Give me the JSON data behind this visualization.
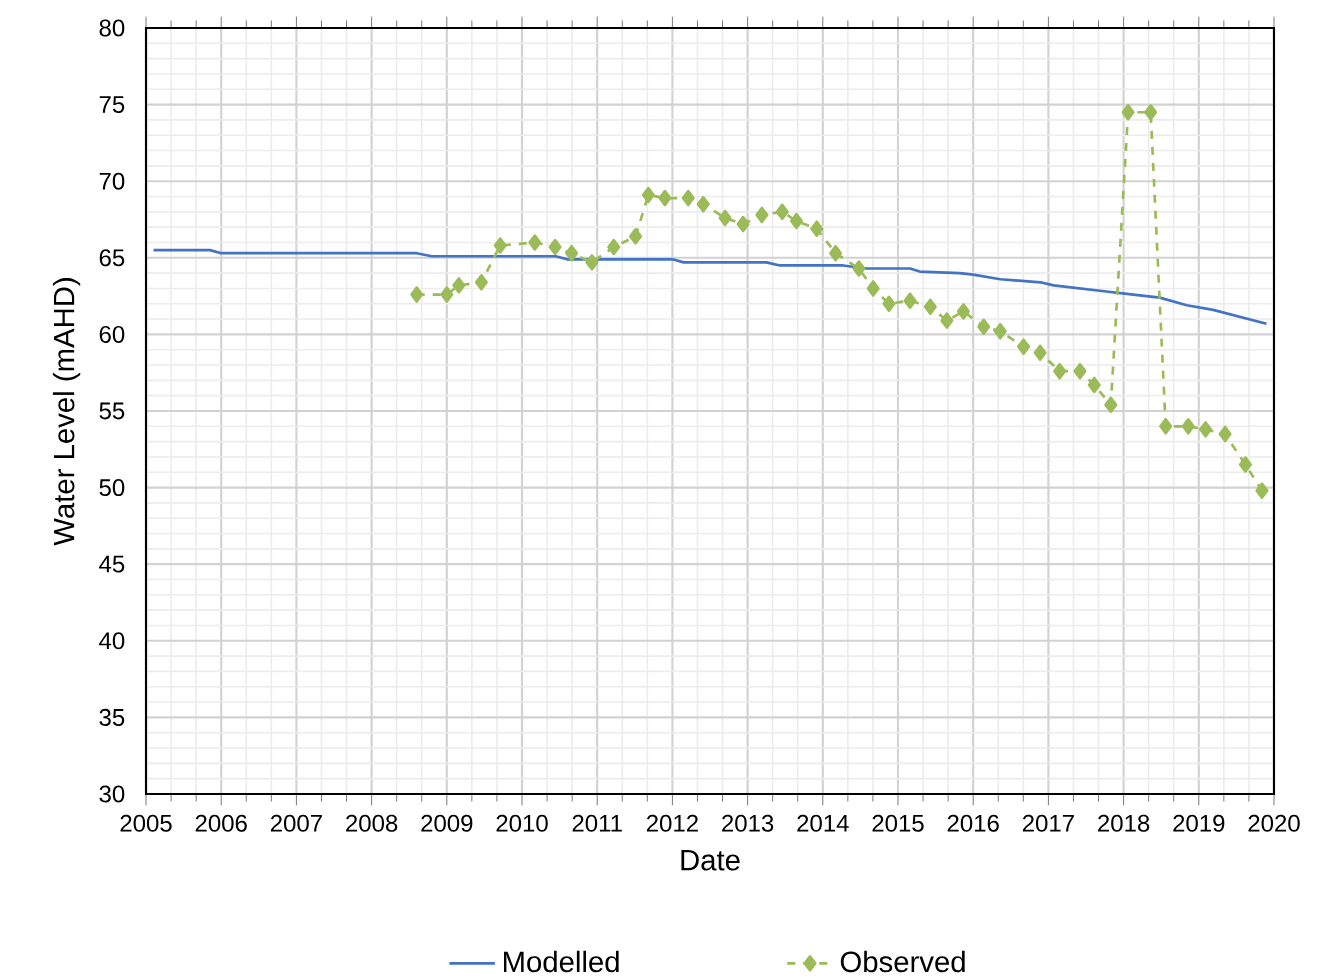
{
  "chart_data": {
    "type": "line",
    "xlabel": "Date",
    "ylabel": "Water Level (mAHD)",
    "xlim": [
      2005,
      2020
    ],
    "xticks": [
      2005,
      2006,
      2007,
      2008,
      2009,
      2010,
      2011,
      2012,
      2013,
      2014,
      2015,
      2016,
      2017,
      2018,
      2019,
      2020
    ],
    "ylim": [
      30,
      80
    ],
    "yticks": [
      30,
      35,
      40,
      45,
      50,
      55,
      60,
      65,
      70,
      75,
      80
    ],
    "grid": true,
    "legend": "bottom",
    "series": [
      {
        "name": "Modelled",
        "color": "#4472c4",
        "marker": "none",
        "line_style": "solid",
        "x": [
          2005.1,
          2005.85,
          2006.0,
          2008.6,
          2008.8,
          2010.45,
          2010.6,
          2012.0,
          2012.15,
          2013.25,
          2013.43,
          2014.27,
          2014.58,
          2015.16,
          2015.29,
          2015.82,
          2016.0,
          2016.36,
          2016.89,
          2017.07,
          2017.42,
          2017.77,
          2018.13,
          2018.48,
          2018.84,
          2019.19,
          2019.9
        ],
        "values": [
          65.5,
          65.5,
          65.3,
          65.3,
          65.1,
          65.1,
          64.9,
          64.9,
          64.7,
          64.7,
          64.5,
          64.5,
          64.3,
          64.3,
          64.1,
          64.0,
          63.9,
          63.6,
          63.4,
          63.2,
          63.0,
          62.8,
          62.6,
          62.4,
          61.9,
          61.6,
          60.7
        ]
      },
      {
        "name": "Observed",
        "color": "#9bbb59",
        "marker": "diamond",
        "line_style": "dashed",
        "x": [
          2008.6,
          2009.0,
          2009.16,
          2009.46,
          2009.71,
          2010.17,
          2010.44,
          2010.66,
          2010.93,
          2011.22,
          2011.51,
          2011.68,
          2011.9,
          2012.21,
          2012.41,
          2012.7,
          2012.94,
          2013.19,
          2013.46,
          2013.65,
          2013.92,
          2014.17,
          2014.48,
          2014.67,
          2014.88,
          2015.16,
          2015.43,
          2015.65,
          2015.87,
          2016.14,
          2016.36,
          2016.67,
          2016.89,
          2017.15,
          2017.42,
          2017.61,
          2017.83,
          2018.06,
          2018.36,
          2018.56,
          2018.86,
          2019.09,
          2019.35,
          2019.62,
          2019.84
        ],
        "values": [
          62.6,
          62.6,
          63.2,
          63.4,
          65.8,
          66.0,
          65.7,
          65.3,
          64.7,
          65.7,
          66.4,
          69.1,
          68.9,
          68.9,
          68.5,
          67.6,
          67.2,
          67.8,
          68.0,
          67.4,
          66.9,
          65.3,
          64.3,
          63.0,
          62.0,
          62.2,
          61.8,
          60.9,
          61.5,
          60.5,
          60.2,
          59.2,
          58.8,
          57.6,
          57.6,
          56.7,
          55.4,
          74.5,
          74.5,
          54.0,
          54.0,
          53.8,
          53.5,
          51.5,
          49.8
        ]
      }
    ]
  }
}
